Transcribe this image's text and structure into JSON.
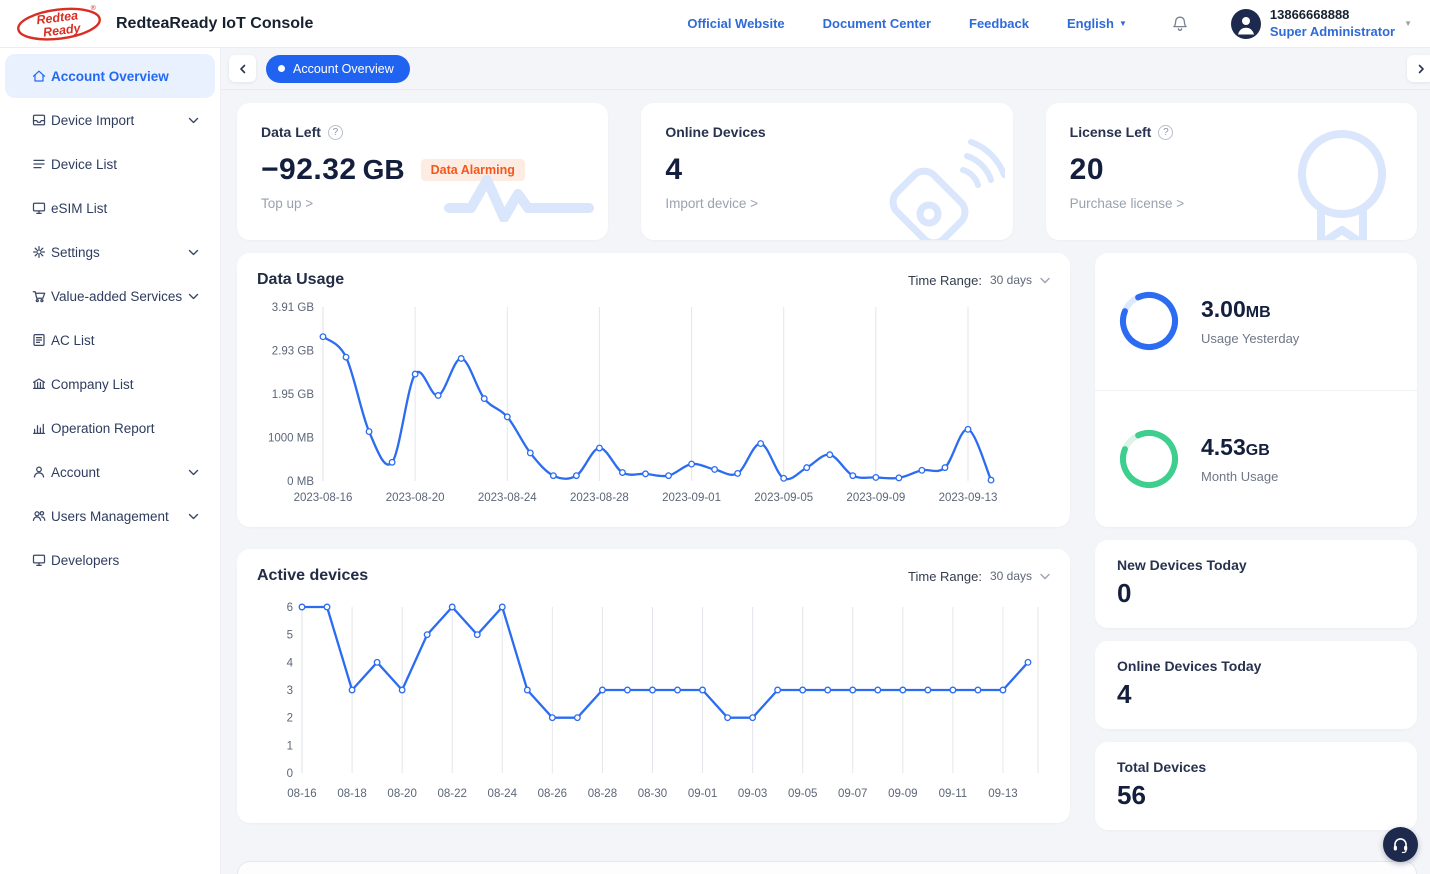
{
  "header": {
    "app_title": "RedteaReady IoT Console",
    "logo_text_line1": "Redtea",
    "logo_text_line2": "Ready",
    "logo_reg_mark": "®",
    "nav": [
      "Official Website",
      "Document Center",
      "Feedback"
    ],
    "language": "English",
    "user": {
      "phone": "13866668888",
      "role": "Super Administrator"
    }
  },
  "sidebar": {
    "items": [
      {
        "label": "Account Overview",
        "icon": "home-icon",
        "active": true,
        "expandable": false
      },
      {
        "label": "Device Import",
        "icon": "inbox-icon",
        "active": false,
        "expandable": true
      },
      {
        "label": "Device List",
        "icon": "list-icon",
        "active": false,
        "expandable": false
      },
      {
        "label": "eSIM List",
        "icon": "monitor-icon",
        "active": false,
        "expandable": false
      },
      {
        "label": "Settings",
        "icon": "gear-icon",
        "active": false,
        "expandable": true
      },
      {
        "label": "Value-added Services",
        "icon": "cart-icon",
        "active": false,
        "expandable": true
      },
      {
        "label": "AC List",
        "icon": "document-icon",
        "active": false,
        "expandable": false
      },
      {
        "label": "Company List",
        "icon": "company-icon",
        "active": false,
        "expandable": false
      },
      {
        "label": "Operation Report",
        "icon": "bar-chart-icon",
        "active": false,
        "expandable": false
      },
      {
        "label": "Account",
        "icon": "user-icon",
        "active": false,
        "expandable": true
      },
      {
        "label": "Users Management",
        "icon": "users-icon",
        "active": false,
        "expandable": true
      },
      {
        "label": "Developers",
        "icon": "monitor-icon",
        "active": false,
        "expandable": false
      }
    ]
  },
  "tabbar": {
    "active_tab": "Account Overview"
  },
  "icons": {
    "help_glyph": "?"
  },
  "summary_cards": [
    {
      "title": "Data Left",
      "value": "−92.32",
      "unit": "GB",
      "badge": "Data Alarming",
      "link": "Top up >",
      "watermark": "pulse-icon"
    },
    {
      "title": "Online Devices",
      "value": "4",
      "unit": "",
      "badge": "",
      "link": "Import device >",
      "watermark": "device-wifi-icon"
    },
    {
      "title": "License Left",
      "value": "20",
      "unit": "",
      "badge": "",
      "link": "Purchase license >",
      "watermark": "medal-icon"
    }
  ],
  "charts": {
    "time_range_label": "Time Range:",
    "time_range_value": "30 days"
  },
  "chart_data": [
    {
      "type": "line",
      "title": "Data Usage",
      "smooth": true,
      "x": [
        "2023-08-16",
        "2023-08-17",
        "2023-08-18",
        "2023-08-19",
        "2023-08-20",
        "2023-08-21",
        "2023-08-22",
        "2023-08-23",
        "2023-08-24",
        "2023-08-25",
        "2023-08-26",
        "2023-08-27",
        "2023-08-28",
        "2023-08-29",
        "2023-08-30",
        "2023-08-31",
        "2023-09-01",
        "2023-09-02",
        "2023-09-03",
        "2023-09-04",
        "2023-09-05",
        "2023-09-06",
        "2023-09-07",
        "2023-09-08",
        "2023-09-09",
        "2023-09-10",
        "2023-09-11",
        "2023-09-12",
        "2023-09-13",
        "2023-09-14"
      ],
      "values_gb": [
        3.24,
        2.78,
        1.11,
        0.42,
        2.4,
        1.92,
        2.75,
        1.85,
        1.44,
        0.63,
        0.12,
        0.12,
        0.74,
        0.19,
        0.16,
        0.12,
        0.38,
        0.26,
        0.17,
        0.84,
        0.06,
        0.3,
        0.59,
        0.12,
        0.08,
        0.07,
        0.24,
        0.3,
        1.16,
        0.02
      ],
      "ytick_labels": [
        "0 MB",
        "1000 MB",
        "1.95 GB",
        "2.93 GB",
        "3.91 GB"
      ],
      "ytick_values": [
        0,
        0.977,
        1.953,
        2.93,
        3.906
      ],
      "ymax": 3.906,
      "xtick_indices": [
        0,
        4,
        8,
        12,
        16,
        20,
        24,
        28
      ],
      "xtick_labels": [
        "2023-08-16",
        "2023-08-20",
        "2023-08-24",
        "2023-08-28",
        "2023-09-01",
        "2023-09-05",
        "2023-09-09",
        "2023-09-13"
      ],
      "line_color": "#2b6cf0",
      "grid": "vertical"
    },
    {
      "type": "line",
      "title": "Active devices",
      "smooth": false,
      "x": [
        "08-16",
        "08-17",
        "08-18",
        "08-19",
        "08-20",
        "08-21",
        "08-22",
        "08-23",
        "08-24",
        "08-25",
        "08-26",
        "08-27",
        "08-28",
        "08-29",
        "08-30",
        "08-31",
        "09-01",
        "09-02",
        "09-03",
        "09-04",
        "09-05",
        "09-06",
        "09-07",
        "09-08",
        "09-09",
        "09-10",
        "09-11",
        "09-12",
        "09-13",
        "09-14"
      ],
      "values": [
        6,
        6,
        3,
        4,
        3,
        5,
        6,
        5,
        6,
        3,
        2,
        2,
        3,
        3,
        3,
        3,
        3,
        2,
        2,
        3,
        3,
        3,
        3,
        3,
        3,
        3,
        3,
        3,
        3,
        4
      ],
      "ytick_labels": [
        "0",
        "1",
        "2",
        "3",
        "4",
        "5",
        "6"
      ],
      "ytick_values": [
        0,
        1,
        2,
        3,
        4,
        5,
        6
      ],
      "ymax": 6,
      "xtick_indices": [
        0,
        2,
        4,
        6,
        8,
        10,
        12,
        14,
        16,
        18,
        20,
        22,
        24,
        26,
        28
      ],
      "xtick_labels": [
        "08-16",
        "08-18",
        "08-20",
        "08-22",
        "08-24",
        "08-26",
        "08-28",
        "08-30",
        "09-01",
        "09-03",
        "09-05",
        "09-07",
        "09-09",
        "09-11",
        "09-13"
      ],
      "line_color": "#2b6cf0",
      "grid": "vertical"
    }
  ],
  "usage_panel": {
    "yesterday": {
      "value": "3.00",
      "unit": "MB",
      "label": "Usage Yesterday",
      "ring_color": "#2b6cf2",
      "ring_track": "#dde9fc",
      "percent": 88
    },
    "month": {
      "value": "4.53",
      "unit": "GB",
      "label": "Month Usage",
      "ring_color": "#3ecf8e",
      "ring_track": "#def3e8",
      "percent": 88
    }
  },
  "stat_cards": [
    {
      "label": "New Devices Today",
      "value": "0"
    },
    {
      "label": "Online Devices Today",
      "value": "4"
    },
    {
      "label": "Total Devices",
      "value": "56"
    }
  ],
  "colors": {
    "accent_blue": "#2b6cf0",
    "link_blue": "#2e6bd9",
    "green": "#3ecf8e",
    "alarm_text": "#f4571c",
    "alarm_bg": "#fdece2",
    "navy": "#1e2a4d",
    "watermark_blue": "#d9e6fb"
  }
}
